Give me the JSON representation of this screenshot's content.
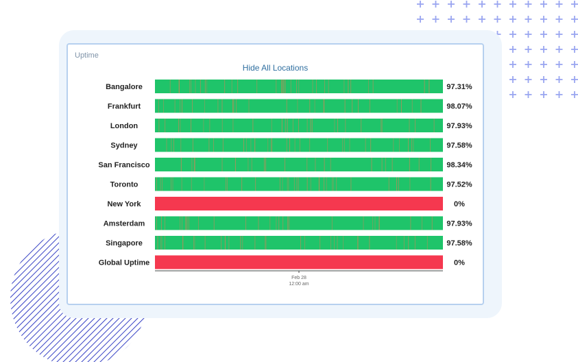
{
  "panel": {
    "title": "Uptime",
    "toggle_label": "Hide All Locations"
  },
  "colors": {
    "up": "#1fc46a",
    "down": "#f5384f",
    "outage_tick": "#bf8a58",
    "panel_border": "#b6d0ef",
    "card_bg": "#eef5fc",
    "decor_plus": "#9aa6f0",
    "decor_hatch": "#3b46c6"
  },
  "chart_data": {
    "type": "bar",
    "orientation": "horizontal",
    "categories": [
      "Bangalore",
      "Frankfurt",
      "London",
      "Sydney",
      "San Francisco",
      "Toronto",
      "New York",
      "Amsterdam",
      "Singapore",
      "Global Uptime"
    ],
    "values": [
      97.31,
      98.07,
      97.93,
      97.58,
      98.34,
      97.52,
      0,
      97.93,
      97.58,
      0
    ],
    "value_labels": [
      "97.31%",
      "98.07%",
      "97.93%",
      "97.58%",
      "98.34%",
      "97.52%",
      "0%",
      "97.93%",
      "97.58%",
      "0%"
    ],
    "x_ticks": [
      {
        "label_line1": "Feb 28",
        "label_line2": "12:00 am"
      }
    ]
  }
}
